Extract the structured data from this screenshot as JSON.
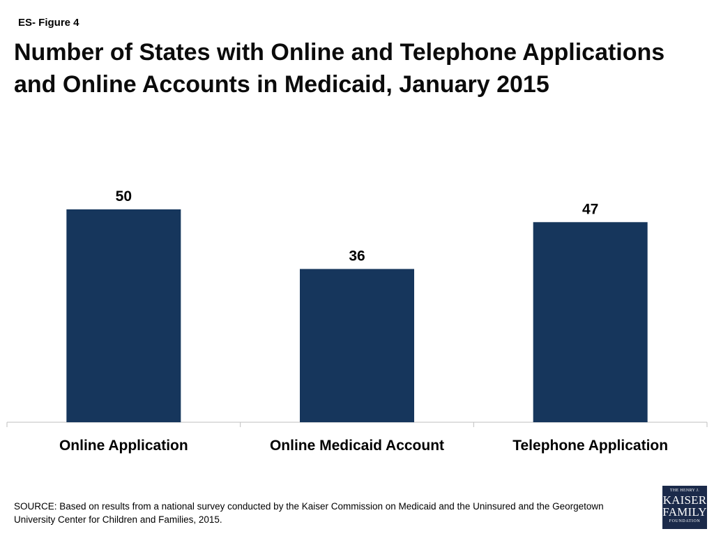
{
  "figure_label": "ES- Figure 4",
  "chart_data": {
    "type": "bar",
    "title": "Number of States with Online and Telephone Applications and Online Accounts in Medicaid, January 2015",
    "categories": [
      "Online Application",
      "Online Medicaid Account",
      "Telephone Application"
    ],
    "values": [
      50,
      36,
      47
    ],
    "xlabel": "",
    "ylabel": "",
    "ylim": [
      0,
      60
    ],
    "grid": false,
    "legend": "none",
    "bar_color": "#16365c"
  },
  "source": "SOURCE: Based on results from a national survey conducted by the Kaiser Commission on Medicaid and the Uninsured and the Georgetown University Center for Children and Families, 2015.",
  "logo": {
    "line1": "THE HENRY J.",
    "line2": "KAISER",
    "line3": "FAMILY",
    "line4": "FOUNDATION",
    "background": "#1b2a4a"
  }
}
